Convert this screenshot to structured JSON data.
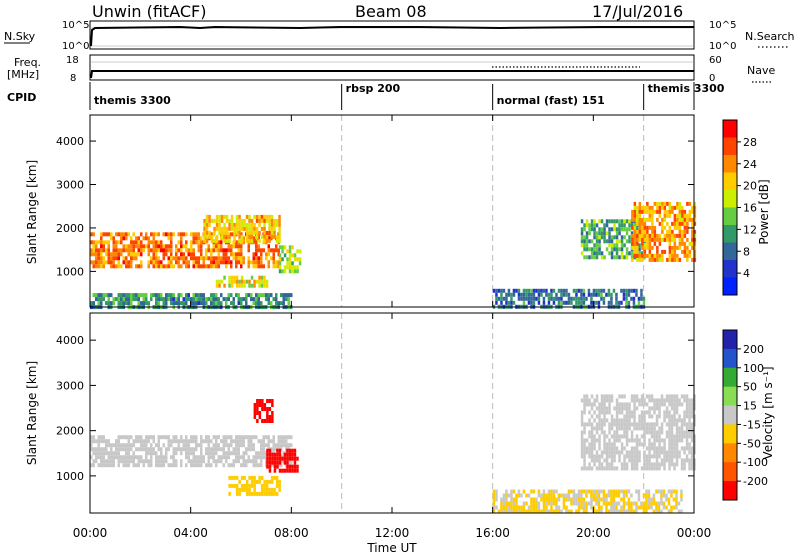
{
  "header": {
    "station": "Unwin (fitACF)",
    "beam": "Beam 08",
    "date": "17/Jul/2016"
  },
  "top_panels": {
    "nsky_label": "N.Sky",
    "nsky_ticks": [
      "10^5",
      "10^0"
    ],
    "nsearch_label": "N.Search",
    "freq_label_1": "Freq.",
    "freq_label_2": "[MHz]",
    "freq_ticks": [
      "18",
      "8"
    ],
    "nave_ticks": [
      "60",
      "0"
    ],
    "nave_label": "Nave",
    "cpid_label": "CPID",
    "cpid_segments": [
      {
        "label": "themis 3300",
        "start": 0,
        "end": 10
      },
      {
        "label": "rbsp 200",
        "start": 10,
        "end": 16
      },
      {
        "label": "normal (fast) 151",
        "start": 16,
        "end": 22
      },
      {
        "label": "themis 3300",
        "start": 22,
        "end": 24
      }
    ]
  },
  "xaxis": {
    "label": "Time UT",
    "ticks": [
      "00:00",
      "04:00",
      "08:00",
      "12:00",
      "16:00",
      "20:00",
      "00:00"
    ],
    "tick_hours": [
      0,
      4,
      8,
      12,
      16,
      20,
      24
    ],
    "dashed_hours": [
      10,
      16,
      22
    ]
  },
  "power_panel": {
    "ylabel": "Slant Range [km]",
    "yticks": [
      "4000",
      "3000",
      "2000",
      "1000"
    ],
    "colorbar_label": "Power [dB]",
    "colorbar_ticks": [
      "28",
      "24",
      "20",
      "16",
      "12",
      "8",
      "4"
    ],
    "colors": [
      "#ff0000",
      "#ff4400",
      "#ff8800",
      "#ffcc00",
      "#ccee00",
      "#66cc44",
      "#339966",
      "#336699",
      "#2233cc",
      "#0022ff"
    ]
  },
  "velocity_panel": {
    "ylabel": "Slant Range [km]",
    "yticks": [
      "4000",
      "3000",
      "2000",
      "1000"
    ],
    "colorbar_label": "Velocity [m s⁻¹]",
    "colorbar_ticks": [
      "200",
      "100",
      "50",
      "15",
      "-15",
      "-50",
      "-100",
      "-200"
    ],
    "colors": [
      "#2222aa",
      "#2255cc",
      "#33aa33",
      "#88dd55",
      "#c8c8c8",
      "#ffcc00",
      "#ff8800",
      "#ff5500",
      "#ff0000"
    ]
  },
  "chart_data": [
    {
      "type": "heatmap",
      "title": "Power",
      "xlabel": "Time UT",
      "ylabel": "Slant Range [km]",
      "xlim": [
        0,
        24
      ],
      "ylim": [
        180,
        4600
      ],
      "colorbar": {
        "label": "Power [dB]",
        "range": [
          0,
          32
        ]
      },
      "regions": [
        {
          "t_start": 0.0,
          "t_end": 7.5,
          "range_start": 1100,
          "range_end": 1900,
          "power_db": 26
        },
        {
          "t_start": 4.5,
          "t_end": 7.5,
          "range_start": 1700,
          "range_end": 2300,
          "power_db": 22
        },
        {
          "t_start": 7.5,
          "t_end": 8.3,
          "range_start": 1000,
          "range_end": 1600,
          "power_db": 16
        },
        {
          "t_start": 5.0,
          "t_end": 7.0,
          "range_start": 700,
          "range_end": 900,
          "power_db": 20
        },
        {
          "t_start": 0.0,
          "t_end": 8.0,
          "range_start": 200,
          "range_end": 500,
          "power_db": 10
        },
        {
          "t_start": 16.0,
          "t_end": 22.0,
          "range_start": 200,
          "range_end": 600,
          "power_db": 8
        },
        {
          "t_start": 19.5,
          "t_end": 22.0,
          "range_start": 1300,
          "range_end": 2200,
          "power_db": 12
        },
        {
          "t_start": 21.5,
          "t_end": 24.0,
          "range_start": 1300,
          "range_end": 2600,
          "power_db": 24
        }
      ]
    },
    {
      "type": "heatmap",
      "title": "Velocity",
      "xlabel": "Time UT",
      "ylabel": "Slant Range [km]",
      "xlim": [
        0,
        24
      ],
      "ylim": [
        180,
        4600
      ],
      "colorbar": {
        "label": "Velocity [m s⁻¹]",
        "range": [
          -200,
          200
        ]
      },
      "regions": [
        {
          "t_start": 0.0,
          "t_end": 8.0,
          "range_start": 1200,
          "range_end": 1900,
          "velocity": 0
        },
        {
          "t_start": 7.0,
          "t_end": 8.2,
          "range_start": 1100,
          "range_end": 1600,
          "velocity": -200
        },
        {
          "t_start": 5.5,
          "t_end": 7.5,
          "range_start": 600,
          "range_end": 1000,
          "velocity": -50
        },
        {
          "t_start": 6.5,
          "t_end": 7.2,
          "range_start": 2200,
          "range_end": 2700,
          "velocity": -200
        },
        {
          "t_start": 16.0,
          "t_end": 23.5,
          "range_start": 200,
          "range_end": 700,
          "velocity": -30
        },
        {
          "t_start": 19.5,
          "t_end": 24.0,
          "range_start": 1200,
          "range_end": 2800,
          "velocity": 0
        }
      ]
    }
  ]
}
